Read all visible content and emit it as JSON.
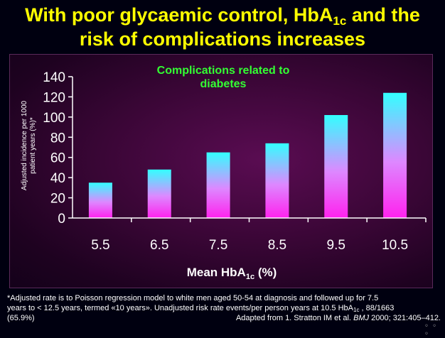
{
  "title": {
    "line1_pre": "With poor glycaemic control, HbA",
    "line1_sub": "1c",
    "line1_post": " and the",
    "line2": "risk of complications increases"
  },
  "chart_data": {
    "type": "bar",
    "title_line1": "Complications related to",
    "title_line2": "diabetes",
    "ylabel_line1": "Adjusted incidence per 1000",
    "ylabel_line2": "patient years (%)*",
    "xlabel_pre": "Mean HbA",
    "xlabel_sub": "1c",
    "xlabel_post": " (%)",
    "categories": [
      "5.5",
      "6.5",
      "7.5",
      "8.5",
      "9.5",
      "10.5"
    ],
    "values": [
      35,
      48,
      65,
      74,
      102,
      124
    ],
    "ylim": [
      0,
      140
    ],
    "yticks": [
      "0",
      "20",
      "40",
      "60",
      "80",
      "100",
      "120",
      "140"
    ],
    "grid": false,
    "colors": {
      "bar_top": "#33ffff",
      "bar_bottom": "#ff22ee",
      "title_color": "#33ff33",
      "axis": "#ffffff"
    }
  },
  "footnote": {
    "line1": "*Adjusted rate is to Poisson regression model to white men aged 50-54 at diagnosis and followed up for 7.5",
    "line2_pre": "years to < 12.5 years, termed «10 years». Unadjusted risk rate events/per person years at 10.5 HbA",
    "line2_sub": "1c",
    "line2_post": " , 88/1663",
    "line3_left": "(65.9%)",
    "line3_right_pre": "Adapted from 1. Stratton IM et al. ",
    "line3_right_journal": "BMJ",
    "line3_right_post": " 2000; 321:405–412."
  },
  "nav": "◦ ◦ ◦"
}
